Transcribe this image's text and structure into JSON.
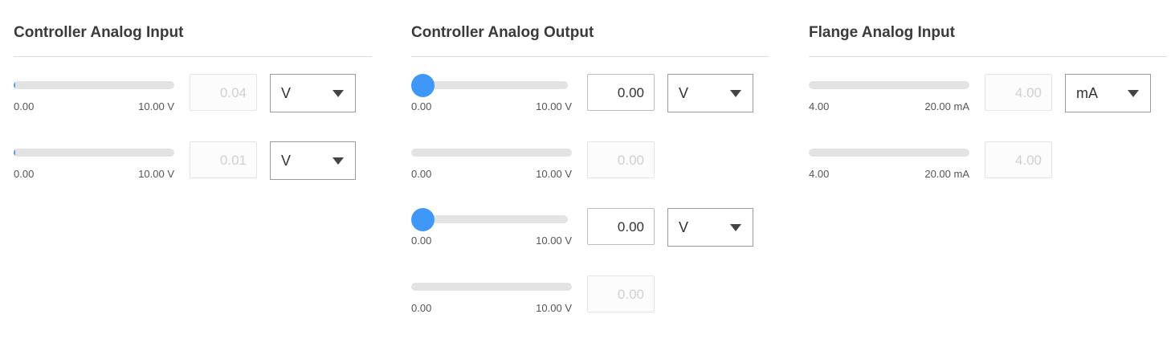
{
  "panels": [
    {
      "title": "Controller Analog Input",
      "rows": [
        {
          "min": "0.00",
          "max": "10.00 V",
          "value": "0.04",
          "fraction": 0.004,
          "unit": "V",
          "editable": false
        },
        {
          "min": "0.00",
          "max": "10.00 V",
          "value": "0.01",
          "fraction": 0.001,
          "unit": "V",
          "editable": false
        }
      ]
    },
    {
      "title": "Controller Analog Output",
      "rows": [
        {
          "min": "0.00",
          "max": "10.00 V",
          "value": "0.00",
          "fraction": 0,
          "unit": "V",
          "editable": true
        },
        {
          "min": "0.00",
          "max": "10.00 V",
          "value": "0.00",
          "fraction": 0,
          "editable": false
        },
        {
          "min": "0.00",
          "max": "10.00 V",
          "value": "0.00",
          "fraction": 0,
          "unit": "V",
          "editable": true
        },
        {
          "min": "0.00",
          "max": "10.00 V",
          "value": "0.00",
          "fraction": 0,
          "editable": false
        }
      ]
    },
    {
      "title": "Flange Analog Input",
      "rows": [
        {
          "min": "4.00",
          "max": "20.00 mA",
          "value": "4.00",
          "fraction": 0,
          "unit": "mA",
          "editable": false
        },
        {
          "min": "4.00",
          "max": "20.00 mA",
          "value": "4.00",
          "fraction": 0,
          "editable": false
        }
      ]
    }
  ],
  "colors": {
    "accent": "#3f98f7",
    "track": "#e3e3e3"
  }
}
